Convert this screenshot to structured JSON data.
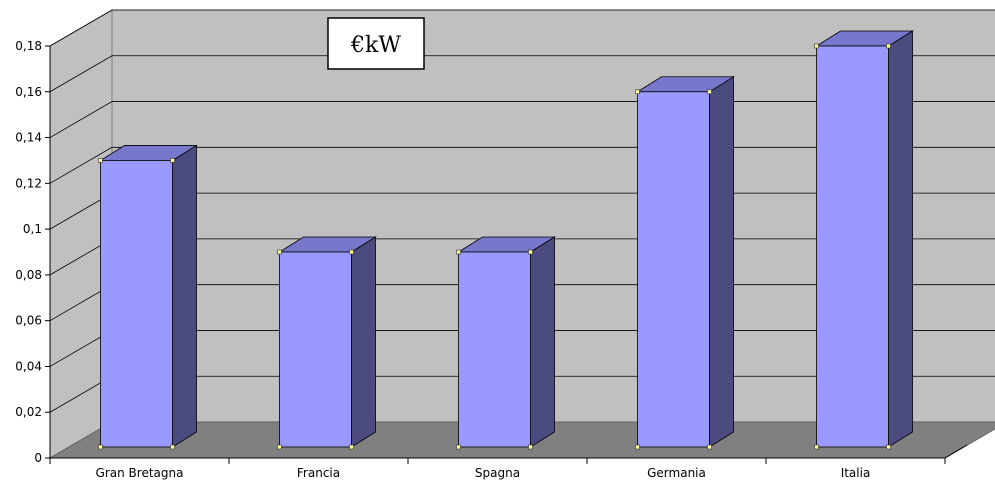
{
  "chart_data": {
    "type": "bar",
    "title": "€kW",
    "xlabel": "",
    "ylabel": "",
    "categories": [
      "Gran Bretagna",
      "Francia",
      "Spagna",
      "Germania",
      "Italia"
    ],
    "values": [
      0.13,
      0.09,
      0.09,
      0.16,
      0.18
    ],
    "ylim": [
      0,
      0.18
    ],
    "yticks": [
      "0",
      "0,02",
      "0,04",
      "0,06",
      "0,08",
      "0,1",
      "0,12",
      "0,14",
      "0,16",
      "0,18"
    ],
    "grid": true,
    "legend": "none",
    "style": "3d-column",
    "colors": {
      "bar_front": "#9999ff",
      "bar_top": "#7777cc",
      "bar_side": "#4b4b80",
      "wall": "#c0c0c0",
      "floor": "#808080"
    }
  }
}
